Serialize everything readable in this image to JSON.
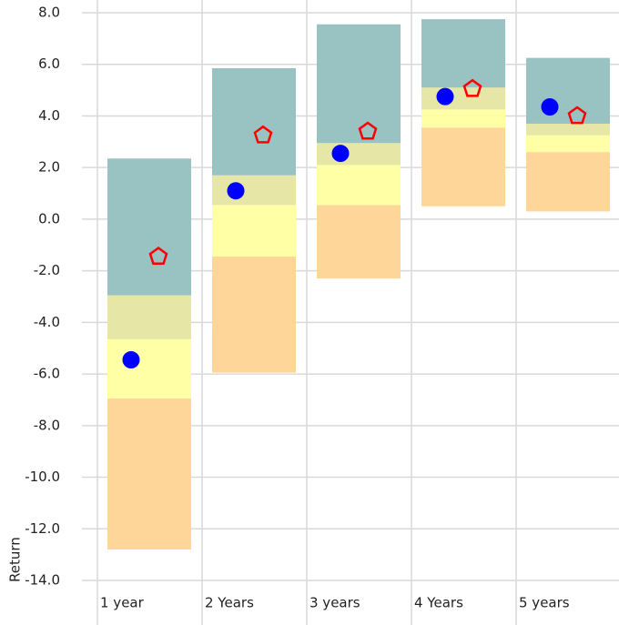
{
  "chart_data": {
    "type": "floating-range",
    "y_label": "Return",
    "categories": [
      "1 year",
      "2 Years",
      "3 years",
      "4 Years",
      "5 years"
    ],
    "levels": [
      {
        "values": [
          -12.8,
          -5.95,
          -2.3,
          0.5,
          0.3
        ]
      },
      {
        "values": [
          -6.95,
          -1.45,
          0.55,
          3.55,
          2.6
        ]
      },
      {
        "values": [
          -4.65,
          0.55,
          2.1,
          4.25,
          3.25
        ]
      },
      {
        "values": [
          -2.95,
          1.7,
          2.95,
          5.1,
          3.7
        ]
      },
      {
        "values": [
          2.35,
          5.85,
          7.55,
          7.75,
          6.25
        ]
      }
    ],
    "band_colors": [
      "#ffd699",
      "#ffffa6",
      "#e6e6a6",
      "#99c2c2"
    ],
    "markers": [
      {
        "marker": "circle",
        "color": "#0000ff",
        "filled": true,
        "values": [
          -5.45,
          1.1,
          2.55,
          4.75,
          4.35
        ]
      },
      {
        "marker": "pentagon",
        "color": "#ff0000",
        "filled": false,
        "values": [
          -1.45,
          3.25,
          3.4,
          5.05,
          4.0
        ]
      }
    ],
    "ylim": [
      -14,
      8
    ],
    "yticks": [
      {
        "value": -14,
        "label": "-14.0"
      },
      {
        "value": -12,
        "label": "-12.0"
      },
      {
        "value": -10,
        "label": "-10.0"
      },
      {
        "value": -8,
        "label": "-8.0"
      },
      {
        "value": -6,
        "label": "-6.0"
      },
      {
        "value": -4,
        "label": "-4.0"
      },
      {
        "value": -2,
        "label": "-2.0"
      },
      {
        "value": 0,
        "label": "0.0"
      },
      {
        "value": 2,
        "label": "2.0"
      },
      {
        "value": 4,
        "label": "4.0"
      },
      {
        "value": 6,
        "label": "6.0"
      },
      {
        "value": 8,
        "label": "8.0"
      }
    ],
    "grid": true
  }
}
